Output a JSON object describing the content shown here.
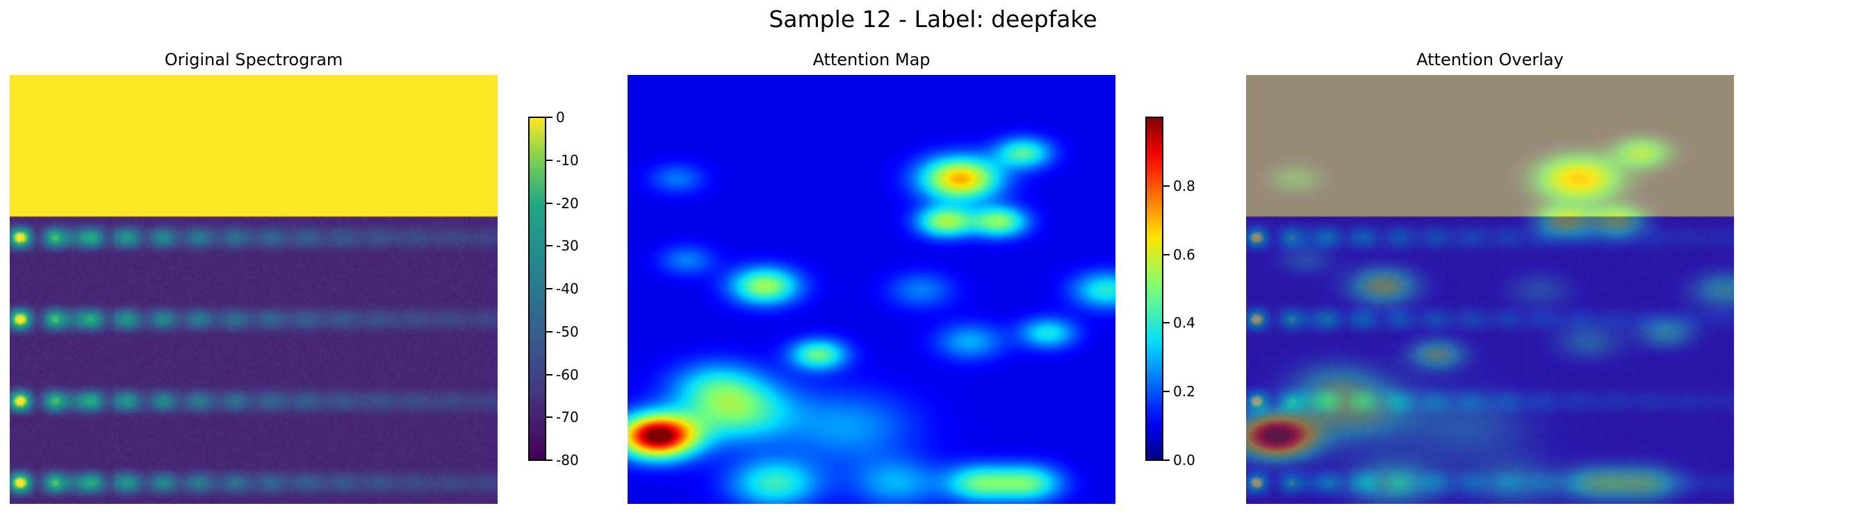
{
  "suptitle": "Sample 12 - Label: deepfake",
  "panels": [
    {
      "title": "Original Spectrogram"
    },
    {
      "title": "Attention Map"
    },
    {
      "title": "Attention Overlay"
    }
  ],
  "chart_data": [
    {
      "type": "heatmap",
      "title": "Original Spectrogram",
      "colormap": "viridis",
      "colorbar": {
        "min": -80,
        "max": 0,
        "ticks": [
          0,
          -10,
          -20,
          -30,
          -40,
          -50,
          -60,
          -70,
          -80
        ]
      }
    },
    {
      "type": "heatmap",
      "title": "Attention Map",
      "colormap": "jet",
      "colorbar": {
        "min": 0.0,
        "max": 1.0,
        "ticks": [
          0.0,
          0.2,
          0.4,
          0.6,
          0.8
        ]
      }
    },
    {
      "type": "heatmap",
      "title": "Attention Overlay",
      "colormap": "viridis + jet overlay"
    }
  ],
  "colors": {
    "spectrogram_top": "#fde725",
    "spectrogram_floor": "#440154"
  }
}
